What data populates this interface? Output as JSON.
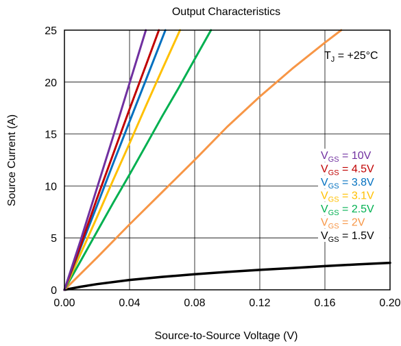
{
  "chart_data": {
    "type": "line",
    "title": "Output Characteristics",
    "xlabel": "Source-to-Source Voltage (V)",
    "ylabel": "Source Current (A)",
    "xlim": [
      0,
      0.2
    ],
    "ylim": [
      0,
      25
    ],
    "x_ticks": [
      "0.00",
      "0.04",
      "0.08",
      "0.12",
      "0.16",
      "0.20"
    ],
    "y_ticks": [
      "0",
      "5",
      "10",
      "15",
      "20",
      "25"
    ],
    "grid": true,
    "annotation": {
      "prefix": "T",
      "subscript": "J",
      "suffix": " = +25°C"
    },
    "legend_position": "right",
    "series": [
      {
        "name": "V_GS = 10V",
        "label_main": "V",
        "label_sub": "GS",
        "label_rest": " = 10V",
        "color": "#7030A0",
        "x": [
          0,
          0.01,
          0.02,
          0.03,
          0.04,
          0.05
        ],
        "y": [
          0,
          4.8,
          9.8,
          14.8,
          19.9,
          25
        ]
      },
      {
        "name": "V_GS = 4.5V",
        "label_main": "V",
        "label_sub": "GS",
        "label_rest": " = 4.5V",
        "color": "#C00000",
        "x": [
          0,
          0.01,
          0.02,
          0.03,
          0.04,
          0.05,
          0.058
        ],
        "y": [
          0,
          4.3,
          8.8,
          13.1,
          17.4,
          21.6,
          25
        ]
      },
      {
        "name": "V_GS = 3.8V",
        "label_main": "V",
        "label_sub": "GS",
        "label_rest": " = 3.8V",
        "color": "#0070C0",
        "x": [
          0,
          0.01,
          0.02,
          0.03,
          0.04,
          0.05,
          0.062
        ],
        "y": [
          0,
          4.1,
          8.1,
          12.2,
          16.2,
          20.2,
          25
        ]
      },
      {
        "name": "V_GS = 3.1V",
        "label_main": "V",
        "label_sub": "GS",
        "label_rest": " = 3.1V",
        "color": "#FFC000",
        "x": [
          0,
          0.01,
          0.02,
          0.03,
          0.04,
          0.05,
          0.06,
          0.071
        ],
        "y": [
          0,
          3.5,
          7.0,
          10.6,
          14.1,
          17.7,
          21.2,
          25
        ]
      },
      {
        "name": "V_GS = 2.5V",
        "label_main": "V",
        "label_sub": "GS",
        "label_rest": " = 2.5V",
        "color": "#00B050",
        "x": [
          0,
          0.01,
          0.02,
          0.03,
          0.04,
          0.05,
          0.06,
          0.07,
          0.08,
          0.09
        ],
        "y": [
          0,
          2.8,
          5.6,
          8.4,
          11.1,
          13.9,
          16.7,
          19.4,
          22.2,
          25
        ]
      },
      {
        "name": "V_GS = 2V",
        "label_main": "V",
        "label_sub": "GS",
        "label_rest": " = 2V",
        "color": "#F79646",
        "x": [
          0,
          0.02,
          0.04,
          0.06,
          0.08,
          0.1,
          0.12,
          0.14,
          0.16,
          0.17
        ],
        "y": [
          0,
          3.1,
          6.3,
          9.4,
          12.5,
          15.7,
          18.6,
          21.3,
          23.8,
          25
        ]
      },
      {
        "name": "V_GS = 1.5V",
        "label_main": "V",
        "label_sub": "GS",
        "label_rest": " = 1.5V",
        "color": "#000000",
        "x": [
          0,
          0.01,
          0.02,
          0.04,
          0.06,
          0.08,
          0.1,
          0.12,
          0.14,
          0.16,
          0.18,
          0.2
        ],
        "y": [
          0,
          0.3,
          0.55,
          0.95,
          1.25,
          1.5,
          1.72,
          1.92,
          2.1,
          2.28,
          2.45,
          2.6
        ]
      }
    ]
  }
}
